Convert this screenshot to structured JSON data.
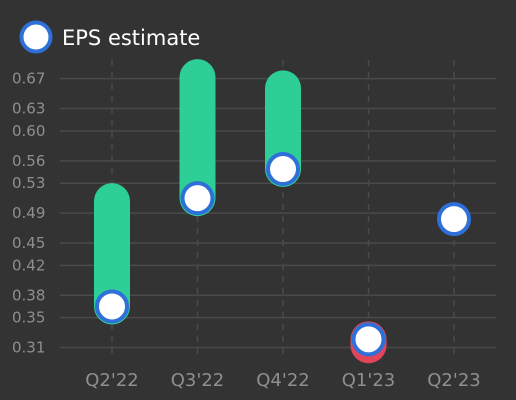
{
  "theme": {
    "background": "#333333",
    "grid_color": "#4a4a4a",
    "tick_color": "#8f8f8f",
    "beat_color": "#2ecf96",
    "miss_color": "#e0455a",
    "estimate_fill": "#ffffff",
    "estimate_stroke": "#2f6fd8",
    "legend_text_color": "#ffffff"
  },
  "chart_data": {
    "type": "range",
    "legend": [
      {
        "name": "EPS estimate",
        "marker": "circle-white-blue-outline"
      }
    ],
    "legend_position": "top-left",
    "categories": [
      "Q2'22",
      "Q3'22",
      "Q4'22",
      "Q1'23",
      "Q2'23"
    ],
    "y_ticks": [
      "0.31",
      "0.35",
      "0.38",
      "0.42",
      "0.45",
      "0.49",
      "0.53",
      "0.56",
      "0.60",
      "0.63",
      "0.67"
    ],
    "ylim": [
      0.3,
      0.695
    ],
    "grid": {
      "horizontal": "solid",
      "vertical": "dashed"
    },
    "estimate": [
      0.365,
      0.51,
      0.549,
      0.321,
      0.482
    ],
    "actual": [
      0.506,
      0.672,
      0.657,
      0.313,
      null
    ]
  }
}
